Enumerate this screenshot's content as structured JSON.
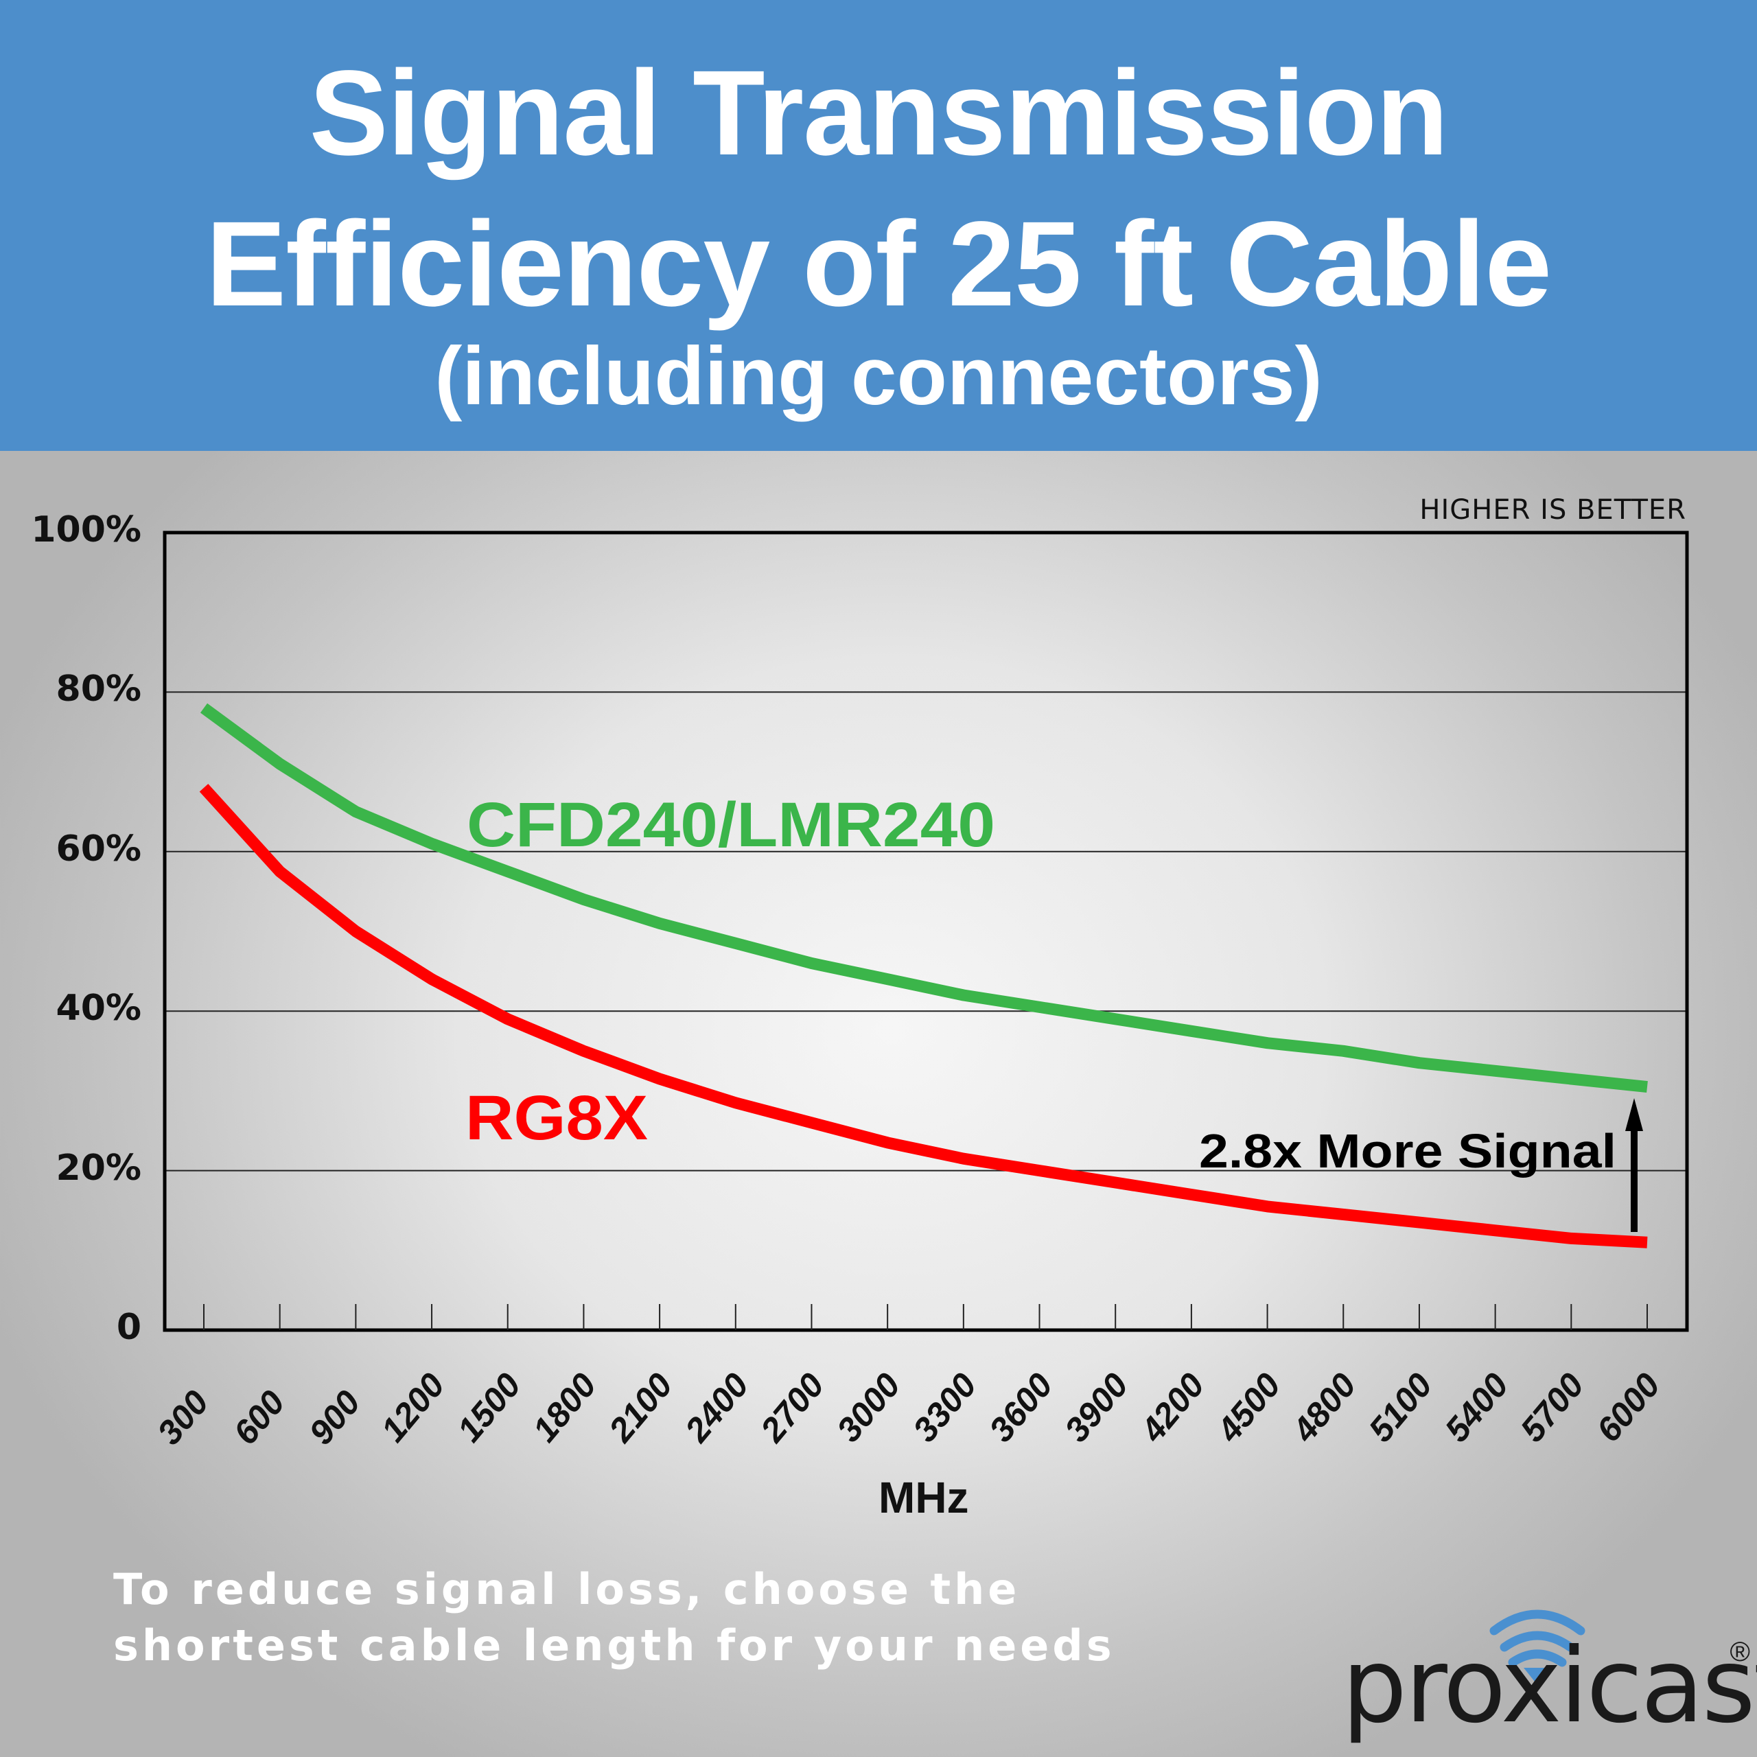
{
  "header": {
    "title_line1": "Signal Transmission",
    "title_line2": "Efficiency of 25 ft Cable",
    "subtitle": "(including connectors)",
    "background_color": "#4d8ecb"
  },
  "note": "HIGHER IS BETTER",
  "annotation": "2.8x More Signal",
  "footer": {
    "line1": "To reduce signal loss, choose the",
    "line2": "shortest cable length for your needs"
  },
  "logo": {
    "brand": "proxicast",
    "registered": "®",
    "icon": "wifi-signal-icon",
    "icon_color": "#4a90d0"
  },
  "chart_data": {
    "type": "line",
    "title": "Signal Transmission Efficiency of 25 ft Cable (including connectors)",
    "xlabel": "MHz",
    "ylabel": "",
    "ylim": [
      0,
      100
    ],
    "yticks": [
      "0",
      "20%",
      "40%",
      "60%",
      "80%",
      "100%"
    ],
    "grid": true,
    "x": [
      300,
      600,
      900,
      1200,
      1500,
      1800,
      2100,
      2400,
      2700,
      3000,
      3300,
      3600,
      3900,
      4200,
      4500,
      4800,
      5100,
      5400,
      5700,
      6000
    ],
    "series": [
      {
        "name": "CFD240/LMR240",
        "color": "#3bb54a",
        "values": [
          78,
          71,
          65,
          61,
          57.5,
          54,
          51,
          48.5,
          46,
          44,
          42,
          40.5,
          39,
          37.5,
          36,
          35,
          33.5,
          32.5,
          31.5,
          30.5
        ]
      },
      {
        "name": "RG8X",
        "color": "#ff0000",
        "values": [
          68,
          57.5,
          50,
          44,
          39,
          35,
          31.5,
          28.5,
          26,
          23.5,
          21.5,
          20,
          18.5,
          17,
          15.5,
          14.5,
          13.5,
          12.5,
          11.5,
          11
        ]
      }
    ],
    "annotations": [
      "HIGHER IS BETTER",
      "2.8x More Signal"
    ]
  }
}
